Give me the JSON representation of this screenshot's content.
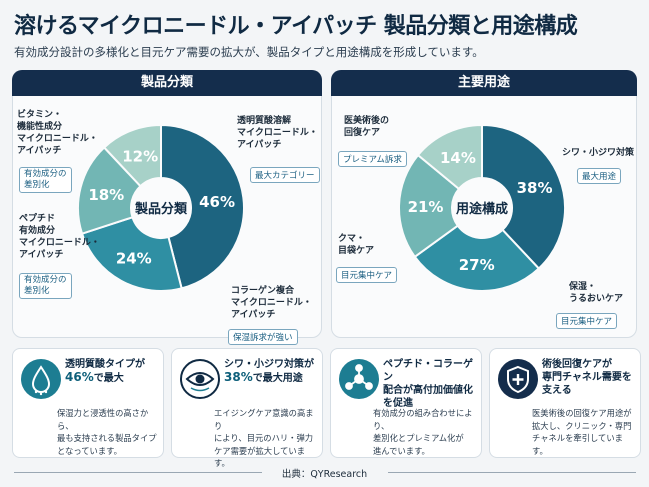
{
  "title": "溶けるマイクロニードル・アイパッチ 製品分類と用途構成",
  "subtitle": "有効成分設計の多様化と目元ケア需要の拡大が、製品タイプと用途構成を形成しています。",
  "chart_data": [
    {
      "type": "pie",
      "title": "製品分類",
      "center_label": "製品分類",
      "slices": [
        {
          "name": "透明質酸溶解マイクロニードル・アイパッチ",
          "value": 46,
          "label": "46%",
          "tag": "最大カテゴリー",
          "color": "#1d6480"
        },
        {
          "name": "コラーゲン複合マイクロニードル・アイパッチ",
          "value": 24,
          "label": "24%",
          "tag": "保湿訴求が強い",
          "color": "#2f8fa3"
        },
        {
          "name": "ペプチド有効成分マイクロニードル・アイパッチ",
          "value": 18,
          "label": "18%",
          "tag": "有効成分の差別化",
          "color": "#72b6b4"
        },
        {
          "name": "ビタミン・機能性成分マイクロニードル・アイパッチ",
          "value": 12,
          "label": "12%",
          "tag": "有効成分の差別化",
          "color": "#a7d1c8"
        }
      ]
    },
    {
      "type": "pie",
      "title": "主要用途",
      "center_label": "用途構成",
      "slices": [
        {
          "name": "シワ・小ジワ対策",
          "value": 38,
          "label": "38%",
          "tag": "最大用途",
          "color": "#1d6480"
        },
        {
          "name": "保湿・うるおいケア",
          "value": 27,
          "label": "27%",
          "tag": "目元集中ケア",
          "color": "#2f8fa3"
        },
        {
          "name": "クマ・目袋ケア",
          "value": 21,
          "label": "21%",
          "tag": "目元集中ケア",
          "color": "#72b6b4"
        },
        {
          "name": "医美術後の回復ケア",
          "value": 14,
          "label": "14%",
          "tag": "プレミアム訴求",
          "color": "#a7d1c8"
        }
      ]
    }
  ],
  "left_panel": {
    "header": "製品分類",
    "ann1_l1": "透明質酸溶解",
    "ann1_l2": "マイクロニードル・",
    "ann1_l3": "アイパッチ",
    "ann1_tag": "最大カテゴリー",
    "ann2_l1": "コラーゲン複合",
    "ann2_l2": "マイクロニードル・",
    "ann2_l3": "アイパッチ",
    "ann2_tag": "保湿訴求が強い",
    "ann3_l1": "ペプチド",
    "ann3_l2": "有効成分",
    "ann3_l3": "マイクロニードル・",
    "ann3_l4": "アイパッチ",
    "ann3_tag_l1": "有効成分の",
    "ann3_tag_l2": "差別化",
    "ann4_l1": "ビタミン・",
    "ann4_l2": "機能性成分",
    "ann4_l3": "マイクロニードル・",
    "ann4_l4": "アイパッチ",
    "ann4_tag_l1": "有効成分の",
    "ann4_tag_l2": "差別化"
  },
  "right_panel": {
    "header": "主要用途",
    "ann1": "シワ・小ジワ対策",
    "ann1_tag": "最大用途",
    "ann2_l1": "保湿・",
    "ann2_l2": "うるおいケア",
    "ann2_tag": "目元集中ケア",
    "ann3_l1": "クマ・",
    "ann3_l2": "目袋ケア",
    "ann3_tag": "目元集中ケア",
    "ann4_l1": "医美術後の",
    "ann4_l2": "回復ケア",
    "ann4_tag": "プレミアム訴求"
  },
  "cards": [
    {
      "icon": "droplet-icon",
      "title_l1": "透明質酸タイプが",
      "title_big": "46%",
      "title_rest": "で最大",
      "body_l1": "保湿力と浸透性の高さから、",
      "body_l2": "最も支持される製品タイプ",
      "body_l3": "となっています。"
    },
    {
      "icon": "eye-icon",
      "title_l1": "シワ・小ジワ対策が",
      "title_big": "38%",
      "title_rest": "で最大用途",
      "body_l1": "エイジングケア意識の高まり",
      "body_l2": "により、目元のハリ・弾力",
      "body_l3": "ケア需要が拡大しています。"
    },
    {
      "icon": "molecule-icon",
      "title_l1": "ペプチド・コラーゲン",
      "title_l2": "配合が高付加価値化",
      "title_l3": "を促進",
      "body_l1": "有効成分の組み合わせにより、",
      "body_l2": "差別化とプレミアム化が",
      "body_l3": "進んでいます。"
    },
    {
      "icon": "shield-plus-icon",
      "title_l1": "術後回復ケアが",
      "title_l2": "専門チャネル需要を",
      "title_l3": "支える",
      "body_l1": "医美術後の回復ケア用途が",
      "body_l2": "拡大し、クリニック・専門",
      "body_l3": "チャネルを牽引しています。"
    }
  ],
  "footer": "出典：QYResearch"
}
